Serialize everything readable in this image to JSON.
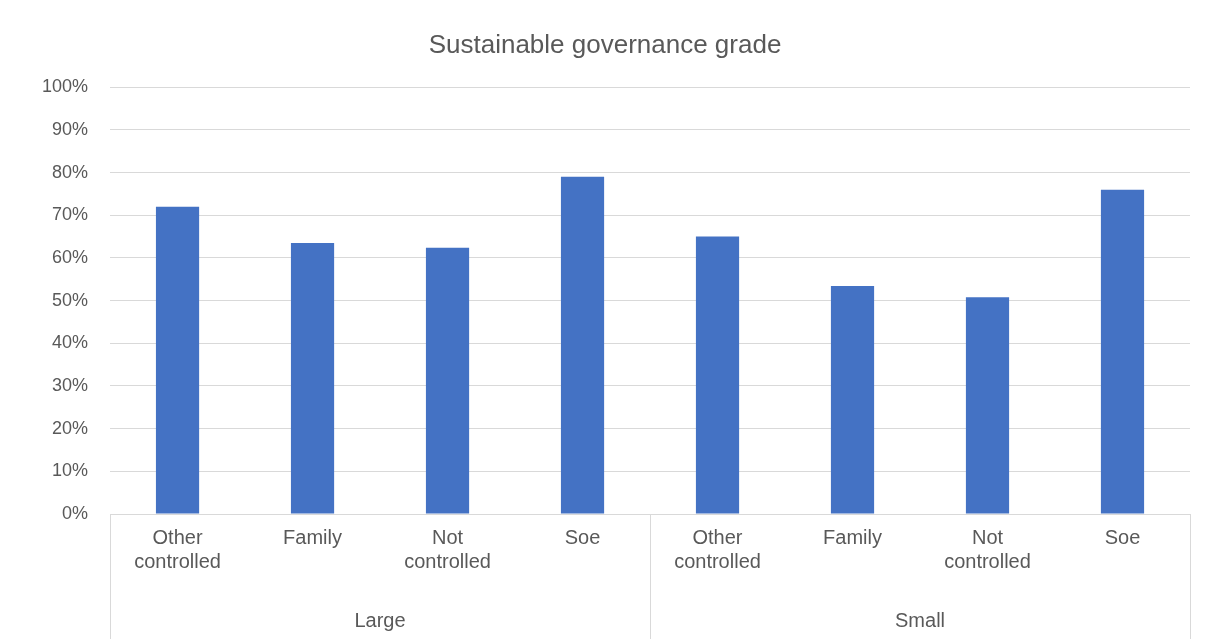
{
  "chart_data": {
    "type": "bar",
    "title": "Sustainable governance grade",
    "categories": [
      "Other controlled",
      "Family",
      "Not controlled",
      "Soe",
      "Other controlled",
      "Family",
      "Not controlled",
      "Soe"
    ],
    "values": [
      72,
      63.5,
      62.4,
      79,
      65,
      53.4,
      50.8,
      76
    ],
    "color": "#4472c4",
    "ylim": [
      0,
      100
    ],
    "yticks": [
      {
        "value": 0,
        "label": "0%"
      },
      {
        "value": 10,
        "label": "10%"
      },
      {
        "value": 20,
        "label": "20%"
      },
      {
        "value": 30,
        "label": "30%"
      },
      {
        "value": 40,
        "label": "40%"
      },
      {
        "value": 50,
        "label": "50%"
      },
      {
        "value": 60,
        "label": "60%"
      },
      {
        "value": 70,
        "label": "70%"
      },
      {
        "value": 80,
        "label": "80%"
      },
      {
        "value": 90,
        "label": "90%"
      },
      {
        "value": 100,
        "label": "100%"
      }
    ],
    "annotations": [
      "Large",
      "Small"
    ],
    "grid": "y",
    "legend": false
  }
}
